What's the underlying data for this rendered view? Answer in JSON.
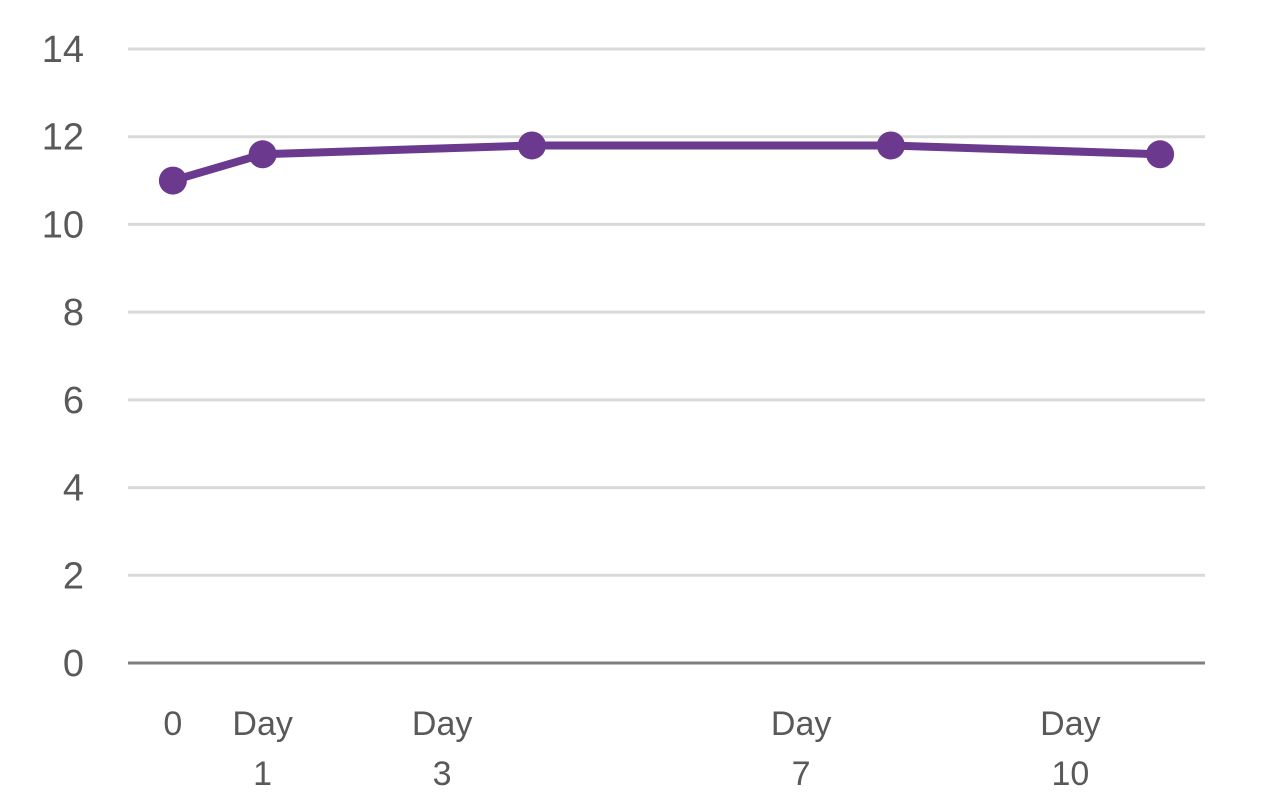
{
  "chart_data": {
    "type": "line",
    "title": "",
    "xlabel": "",
    "ylabel": "",
    "ylim": [
      0,
      14
    ],
    "yticks": [
      0,
      2,
      4,
      6,
      8,
      10,
      12,
      14
    ],
    "x_tick_labels": [
      {
        "x": 0,
        "lines": [
          "0"
        ]
      },
      {
        "x": 1,
        "lines": [
          "Day",
          "1"
        ]
      },
      {
        "x": 3,
        "lines": [
          "Day",
          "3"
        ]
      },
      {
        "x": 7,
        "lines": [
          "Day",
          "7"
        ]
      },
      {
        "x": 10,
        "lines": [
          "Day",
          "10"
        ]
      }
    ],
    "xlim": [
      -0.5,
      11.5
    ],
    "grid": true,
    "legend": "none",
    "series": [
      {
        "color": "#6B3A8E",
        "x": [
          0,
          1,
          4,
          8,
          11
        ],
        "y": [
          11.0,
          11.6,
          11.8,
          11.8,
          11.6
        ]
      }
    ]
  }
}
